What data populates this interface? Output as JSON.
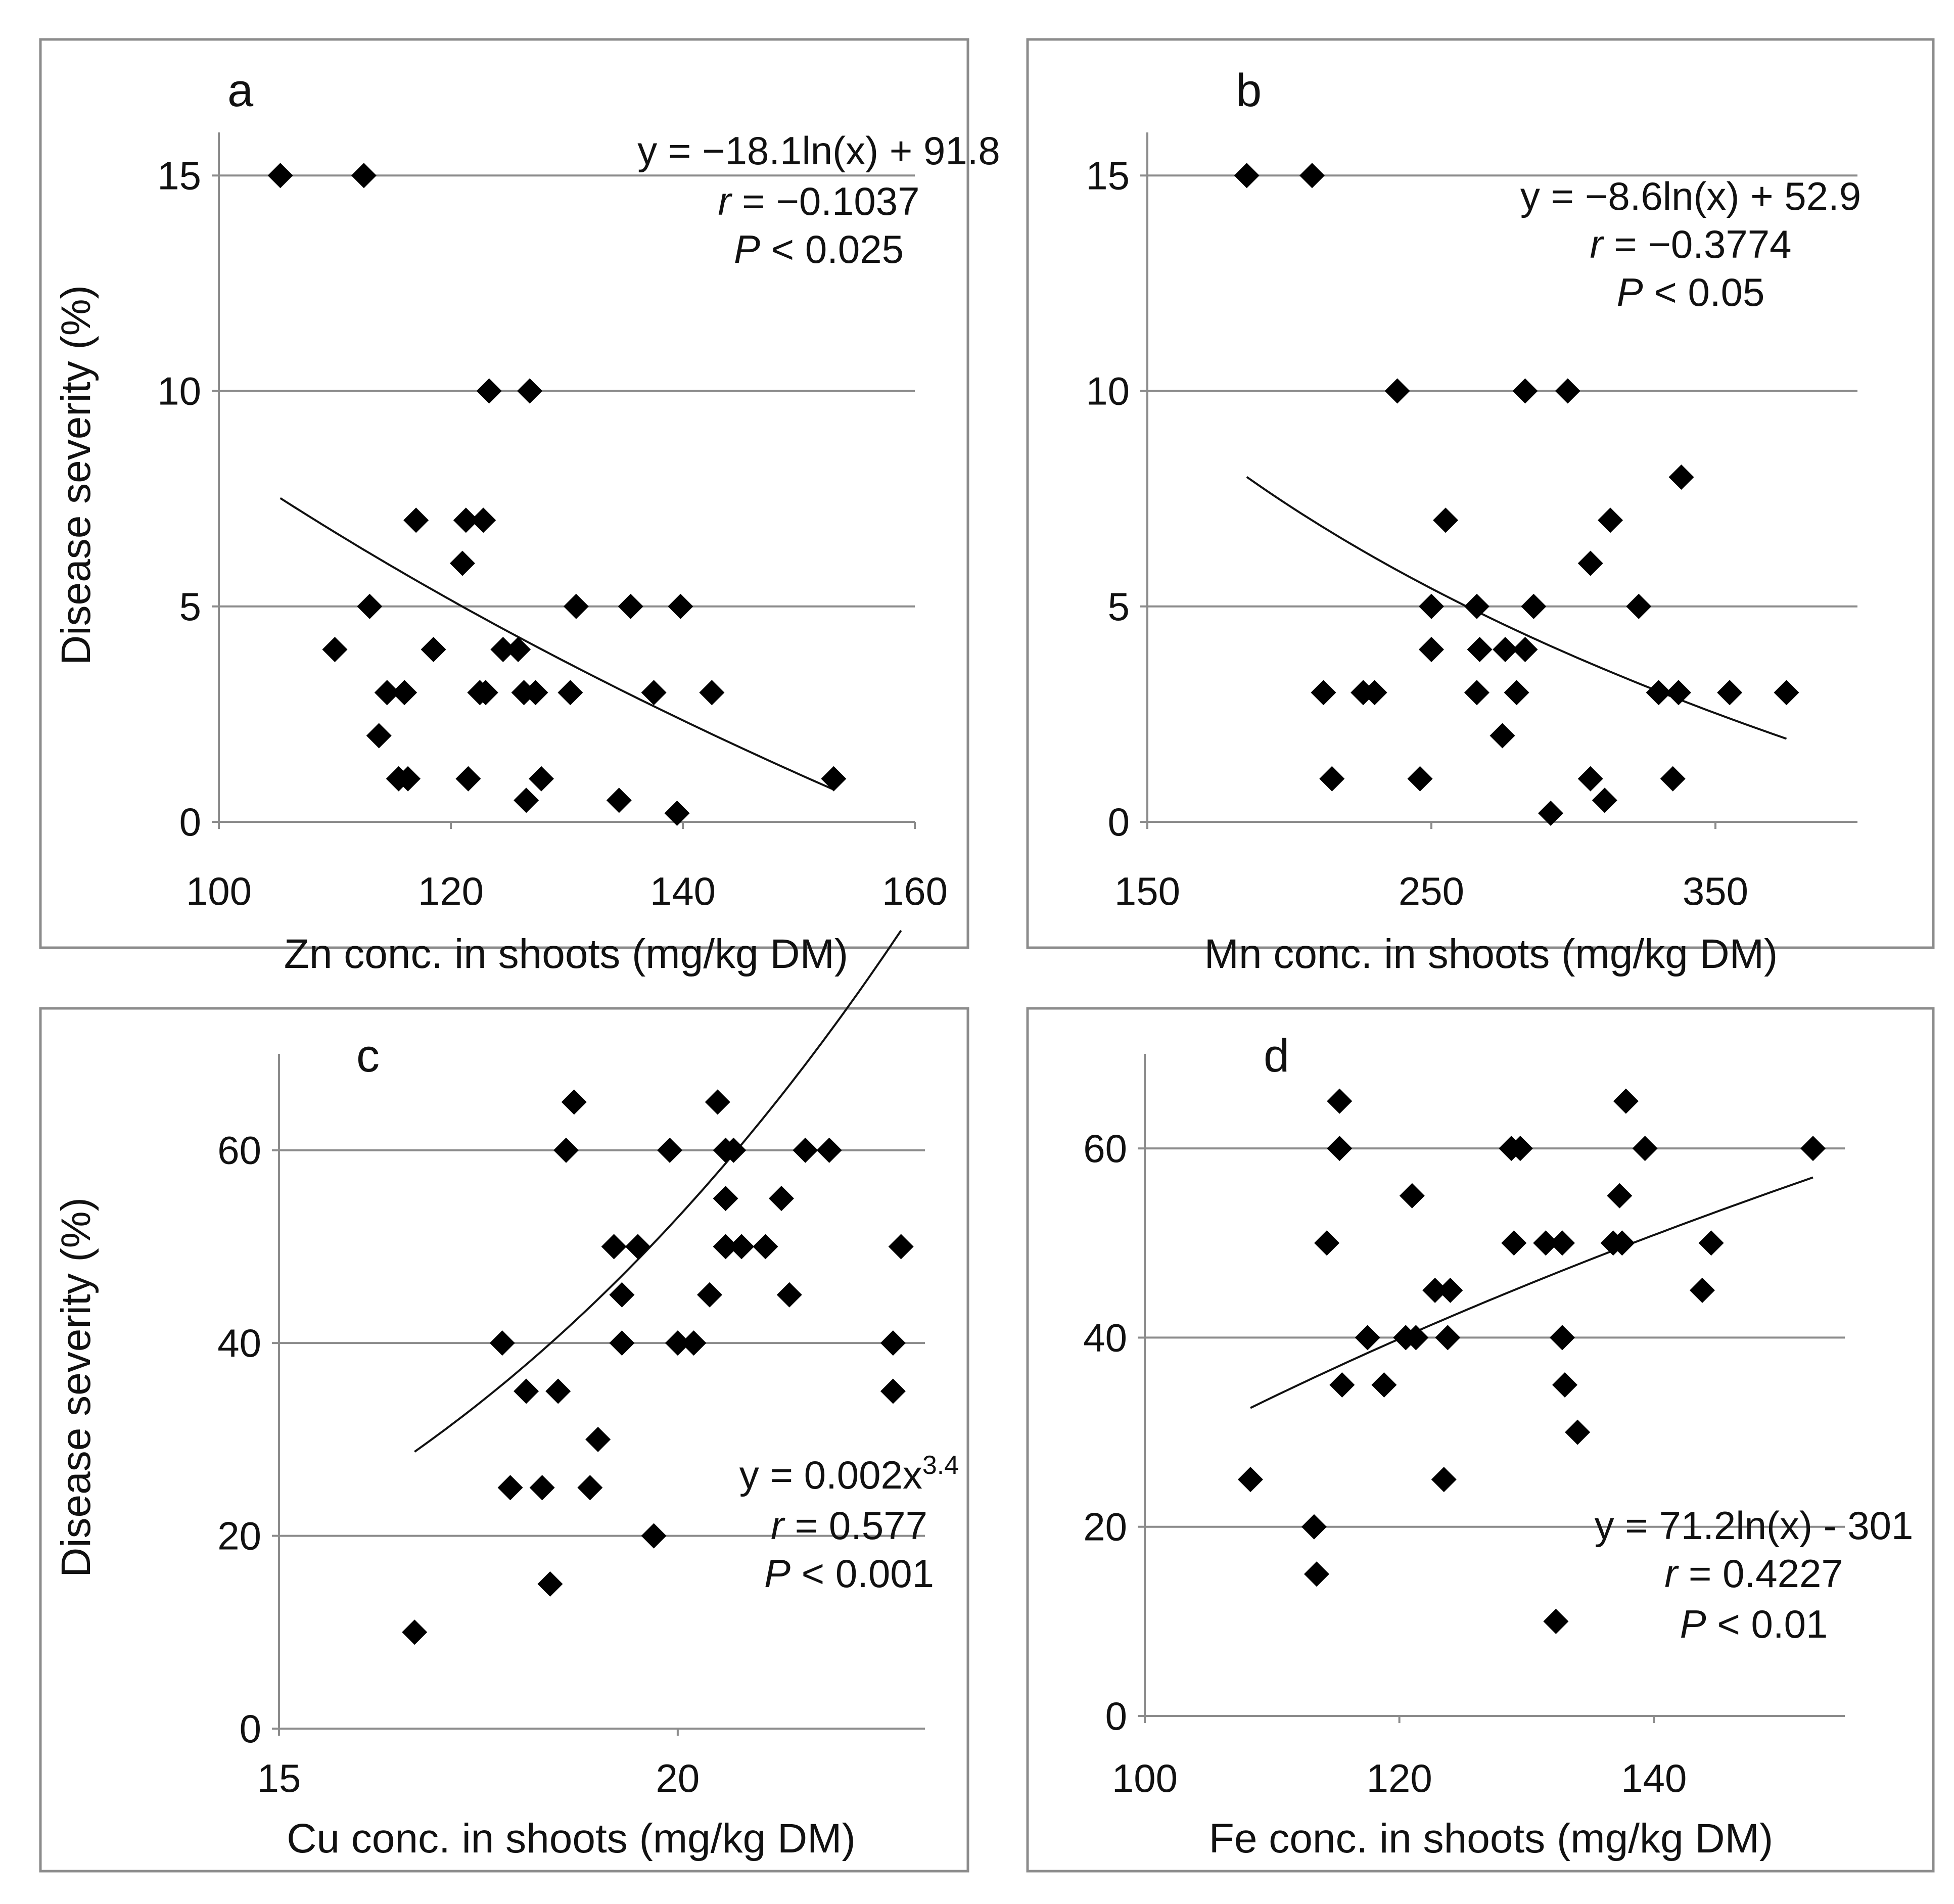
{
  "y_axis_title": "Disease severity (%)",
  "chart_data": [
    {
      "type": "scatter",
      "panel": "a",
      "xlabel": "Zn conc. in shoots (mg/kg DM)",
      "ylabel": "Disease severity (%)",
      "xlim": [
        100,
        160
      ],
      "ylim": [
        0,
        16
      ],
      "xticks": [
        100,
        120,
        140,
        160
      ],
      "yticks": [
        0,
        5,
        10,
        15
      ],
      "grid": true,
      "trendline": {
        "kind": "log",
        "a": -18.1,
        "b": 91.8,
        "x_range": [
          105.3,
          153
        ]
      },
      "equation_lines": [
        "y = −18.1ln(x) + 91.8",
        "r = −0.1037",
        "P < 0.025"
      ],
      "points": [
        {
          "x": 105.3,
          "y": 15
        },
        {
          "x": 112.5,
          "y": 15
        },
        {
          "x": 110,
          "y": 4
        },
        {
          "x": 113,
          "y": 5
        },
        {
          "x": 113.8,
          "y": 2
        },
        {
          "x": 114.5,
          "y": 3
        },
        {
          "x": 115.5,
          "y": 1
        },
        {
          "x": 116,
          "y": 3
        },
        {
          "x": 116.3,
          "y": 1
        },
        {
          "x": 117,
          "y": 7
        },
        {
          "x": 118.5,
          "y": 4
        },
        {
          "x": 121,
          "y": 6
        },
        {
          "x": 121.3,
          "y": 7
        },
        {
          "x": 121.5,
          "y": 1
        },
        {
          "x": 122.8,
          "y": 7
        },
        {
          "x": 122.5,
          "y": 3
        },
        {
          "x": 123,
          "y": 3
        },
        {
          "x": 123.3,
          "y": 10
        },
        {
          "x": 124.5,
          "y": 4
        },
        {
          "x": 125.8,
          "y": 4
        },
        {
          "x": 126.3,
          "y": 3
        },
        {
          "x": 126.5,
          "y": 0.5
        },
        {
          "x": 126.8,
          "y": 10
        },
        {
          "x": 127.3,
          "y": 3
        },
        {
          "x": 127.8,
          "y": 1
        },
        {
          "x": 130.3,
          "y": 3
        },
        {
          "x": 130.8,
          "y": 5
        },
        {
          "x": 134.5,
          "y": 0.5
        },
        {
          "x": 135.5,
          "y": 5
        },
        {
          "x": 137.5,
          "y": 3
        },
        {
          "x": 139.5,
          "y": 0.2
        },
        {
          "x": 139.8,
          "y": 5
        },
        {
          "x": 142.5,
          "y": 3
        },
        {
          "x": 153,
          "y": 1
        }
      ]
    },
    {
      "type": "scatter",
      "panel": "b",
      "xlabel": "Mn conc. in shoots (mg/kg DM)",
      "ylabel": "",
      "xlim": [
        150,
        400
      ],
      "ylim": [
        0,
        16
      ],
      "xticks": [
        150,
        250,
        350
      ],
      "yticks": [
        0,
        5,
        10,
        15
      ],
      "grid": true,
      "trendline": {
        "kind": "log",
        "a": -8.6,
        "b": 52.9,
        "x_range": [
          185,
          375
        ]
      },
      "equation_lines": [
        "y = −8.6ln(x) + 52.9",
        "r = −0.3774",
        "P < 0.05"
      ],
      "points": [
        {
          "x": 185,
          "y": 15
        },
        {
          "x": 208,
          "y": 15
        },
        {
          "x": 212,
          "y": 3
        },
        {
          "x": 215,
          "y": 1
        },
        {
          "x": 226,
          "y": 3
        },
        {
          "x": 230,
          "y": 3
        },
        {
          "x": 238,
          "y": 10
        },
        {
          "x": 246,
          "y": 1
        },
        {
          "x": 250,
          "y": 5
        },
        {
          "x": 250,
          "y": 4
        },
        {
          "x": 255,
          "y": 7
        },
        {
          "x": 266,
          "y": 5
        },
        {
          "x": 266,
          "y": 3
        },
        {
          "x": 267,
          "y": 4
        },
        {
          "x": 275,
          "y": 2
        },
        {
          "x": 276,
          "y": 4
        },
        {
          "x": 280,
          "y": 3
        },
        {
          "x": 283,
          "y": 4
        },
        {
          "x": 283,
          "y": 10
        },
        {
          "x": 286,
          "y": 5
        },
        {
          "x": 292,
          "y": 0.2
        },
        {
          "x": 298,
          "y": 10
        },
        {
          "x": 306,
          "y": 6
        },
        {
          "x": 306,
          "y": 1
        },
        {
          "x": 311,
          "y": 0.5
        },
        {
          "x": 313,
          "y": 7
        },
        {
          "x": 323,
          "y": 5
        },
        {
          "x": 330,
          "y": 3
        },
        {
          "x": 335,
          "y": 1
        },
        {
          "x": 337,
          "y": 3
        },
        {
          "x": 338,
          "y": 8
        },
        {
          "x": 355,
          "y": 3
        },
        {
          "x": 375,
          "y": 3
        }
      ]
    },
    {
      "type": "scatter",
      "panel": "c",
      "xlabel": "Cu conc. in shoots (mg/kg DM)",
      "ylabel": "Disease severity (%)",
      "xlim": [
        15,
        23.1
      ],
      "ylim": [
        0,
        70
      ],
      "xticks": [
        15,
        20
      ],
      "yticks": [
        0,
        20,
        40,
        60
      ],
      "grid": true,
      "trendline": {
        "kind": "power",
        "a": 0.002,
        "b": 3.4,
        "x_range": [
          16.7,
          22.8
        ]
      },
      "equation_lines": [
        "y = 0.002x",
        "3.4",
        "r = 0.577",
        "P < 0.001"
      ],
      "points": [
        {
          "x": 16.7,
          "y": 10
        },
        {
          "x": 17.8,
          "y": 40
        },
        {
          "x": 17.9,
          "y": 25
        },
        {
          "x": 18.1,
          "y": 35
        },
        {
          "x": 18.3,
          "y": 25
        },
        {
          "x": 18.4,
          "y": 15
        },
        {
          "x": 18.5,
          "y": 35
        },
        {
          "x": 18.6,
          "y": 60
        },
        {
          "x": 18.7,
          "y": 65
        },
        {
          "x": 18.9,
          "y": 25
        },
        {
          "x": 19,
          "y": 30
        },
        {
          "x": 19.2,
          "y": 50
        },
        {
          "x": 19.3,
          "y": 45
        },
        {
          "x": 19.3,
          "y": 40
        },
        {
          "x": 19.5,
          "y": 50
        },
        {
          "x": 19.7,
          "y": 20
        },
        {
          "x": 19.9,
          "y": 60
        },
        {
          "x": 20,
          "y": 40
        },
        {
          "x": 20.2,
          "y": 40
        },
        {
          "x": 20.4,
          "y": 45
        },
        {
          "x": 20.5,
          "y": 65
        },
        {
          "x": 20.6,
          "y": 60
        },
        {
          "x": 20.6,
          "y": 55
        },
        {
          "x": 20.6,
          "y": 50
        },
        {
          "x": 20.7,
          "y": 60
        },
        {
          "x": 20.8,
          "y": 50
        },
        {
          "x": 21.1,
          "y": 50
        },
        {
          "x": 21.3,
          "y": 55
        },
        {
          "x": 21.4,
          "y": 45
        },
        {
          "x": 21.6,
          "y": 60
        },
        {
          "x": 21.9,
          "y": 60
        },
        {
          "x": 22.7,
          "y": 40
        },
        {
          "x": 22.7,
          "y": 35
        },
        {
          "x": 22.8,
          "y": 50
        }
      ]
    },
    {
      "type": "scatter",
      "panel": "d",
      "xlabel": "Fe conc. in shoots (mg/kg DM)",
      "ylabel": "",
      "xlim": [
        100,
        155
      ],
      "ylim": [
        0,
        70
      ],
      "xticks": [
        100,
        120,
        140
      ],
      "yticks": [
        0,
        20,
        40,
        60
      ],
      "grid": true,
      "trendline": {
        "kind": "log",
        "a": 71.2,
        "b": -301,
        "x_range": [
          108.3,
          152.5
        ]
      },
      "equation_lines": [
        "y = 71.2ln(x) - 301",
        "r = 0.4227",
        "P < 0.01"
      ],
      "points": [
        {
          "x": 108.3,
          "y": 25
        },
        {
          "x": 113.3,
          "y": 20
        },
        {
          "x": 113.5,
          "y": 15
        },
        {
          "x": 114.3,
          "y": 50
        },
        {
          "x": 115.3,
          "y": 65
        },
        {
          "x": 115.3,
          "y": 60
        },
        {
          "x": 115.5,
          "y": 35
        },
        {
          "x": 117.5,
          "y": 40
        },
        {
          "x": 118.8,
          "y": 35
        },
        {
          "x": 120.5,
          "y": 40
        },
        {
          "x": 121,
          "y": 55
        },
        {
          "x": 121.3,
          "y": 40
        },
        {
          "x": 122.8,
          "y": 45
        },
        {
          "x": 123.5,
          "y": 25
        },
        {
          "x": 123.8,
          "y": 40
        },
        {
          "x": 124,
          "y": 45
        },
        {
          "x": 128.8,
          "y": 60
        },
        {
          "x": 129,
          "y": 50
        },
        {
          "x": 129.5,
          "y": 60
        },
        {
          "x": 131.5,
          "y": 50
        },
        {
          "x": 132.3,
          "y": 10
        },
        {
          "x": 132.8,
          "y": 50
        },
        {
          "x": 132.8,
          "y": 40
        },
        {
          "x": 133,
          "y": 35
        },
        {
          "x": 134,
          "y": 30
        },
        {
          "x": 136.8,
          "y": 50
        },
        {
          "x": 137.3,
          "y": 55
        },
        {
          "x": 137.5,
          "y": 50
        },
        {
          "x": 137.8,
          "y": 65
        },
        {
          "x": 139.3,
          "y": 60
        },
        {
          "x": 143.8,
          "y": 45
        },
        {
          "x": 144.5,
          "y": 50
        },
        {
          "x": 152.5,
          "y": 60
        }
      ]
    }
  ]
}
